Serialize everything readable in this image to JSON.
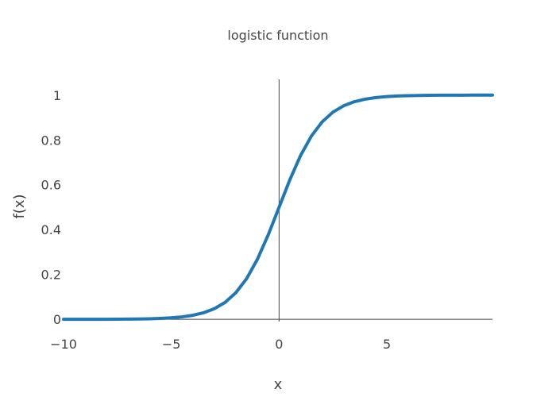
{
  "chart_data": {
    "type": "line",
    "title": "logistic function",
    "xlabel": "x",
    "ylabel": "f(x)",
    "xlim": [
      -10,
      9.9
    ],
    "ylim": [
      -0.01,
      1.07
    ],
    "x_ticks": [
      {
        "value": -10,
        "label": "−10"
      },
      {
        "value": -5,
        "label": "−5"
      },
      {
        "value": 0,
        "label": "0"
      },
      {
        "value": 5,
        "label": "5"
      }
    ],
    "y_ticks": [
      {
        "value": 0,
        "label": "0"
      },
      {
        "value": 0.2,
        "label": "0.2"
      },
      {
        "value": 0.4,
        "label": "0.4"
      },
      {
        "value": 0.6,
        "label": "0.6"
      },
      {
        "value": 0.8,
        "label": "0.8"
      },
      {
        "value": 1,
        "label": "1"
      }
    ],
    "grid": false,
    "zero_lines": true,
    "series": [
      {
        "color": "#1f77b4",
        "x": [
          -10.0,
          -9.5,
          -9.0,
          -8.5,
          -8.0,
          -7.5,
          -7.0,
          -6.5,
          -6.0,
          -5.5,
          -5.0,
          -4.5,
          -4.0,
          -3.5,
          -3.0,
          -2.5,
          -2.0,
          -1.5,
          -1.0,
          -0.5,
          0.0,
          0.5,
          1.0,
          1.5,
          2.0,
          2.5,
          3.0,
          3.5,
          4.0,
          4.5,
          5.0,
          5.5,
          6.0,
          6.5,
          7.0,
          7.5,
          8.0,
          8.5,
          9.0,
          9.5,
          9.9
        ],
        "y": [
          4.54e-05,
          7.49e-05,
          0.0001234,
          0.0002035,
          0.0003354,
          0.0005528,
          0.0009111,
          0.0015011,
          0.0024726,
          0.0040701,
          0.0066929,
          0.0109869,
          0.0179862,
          0.0293122,
          0.0474259,
          0.0758582,
          0.1192029,
          0.1824255,
          0.2689414,
          0.3775407,
          0.5,
          0.6224593,
          0.7310586,
          0.8175745,
          0.8807971,
          0.9241418,
          0.9525741,
          0.9706878,
          0.9820138,
          0.9890131,
          0.9933071,
          0.9959299,
          0.9975274,
          0.9984989,
          0.9990889,
          0.9994472,
          0.9996646,
          0.9997965,
          0.9998766,
          0.9999251,
          0.99995
        ]
      }
    ]
  }
}
